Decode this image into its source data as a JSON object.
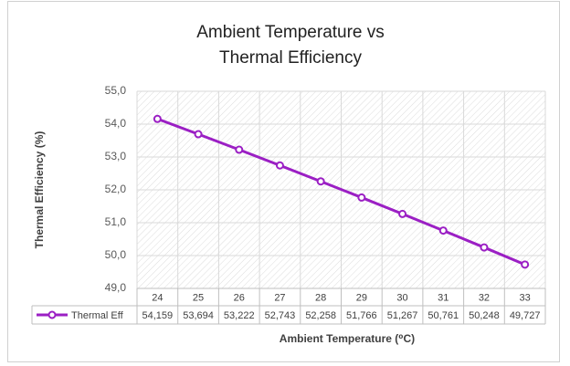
{
  "chart_data": {
    "type": "line",
    "title": [
      "Ambient Temperature vs",
      "Thermal Efficiency"
    ],
    "y_label": "Thermal Efficiency (%)",
    "x_label": "Ambient Temperature (⁰C)",
    "categories": [
      "24",
      "25",
      "26",
      "27",
      "28",
      "29",
      "30",
      "31",
      "32",
      "33"
    ],
    "series": [
      {
        "name": "Thermal Eff",
        "color": "#9b1fc4",
        "values": [
          54.159,
          53.694,
          53.222,
          52.743,
          52.258,
          51.766,
          51.267,
          50.761,
          50.248,
          49.727
        ],
        "value_labels": [
          "54,159",
          "53,694",
          "53,222",
          "52,743",
          "52,258",
          "51,766",
          "51,267",
          "50,761",
          "50,248",
          "49,727"
        ]
      }
    ],
    "ylim": [
      49,
      55
    ],
    "yticks": [
      {
        "value": 49,
        "label": "49,0"
      },
      {
        "value": 50,
        "label": "50,0"
      },
      {
        "value": 51,
        "label": "51,0"
      },
      {
        "value": 52,
        "label": "52,0"
      },
      {
        "value": 53,
        "label": "53,0"
      },
      {
        "value": 54,
        "label": "54,0"
      },
      {
        "value": 55,
        "label": "55,0"
      }
    ],
    "grid": true
  }
}
